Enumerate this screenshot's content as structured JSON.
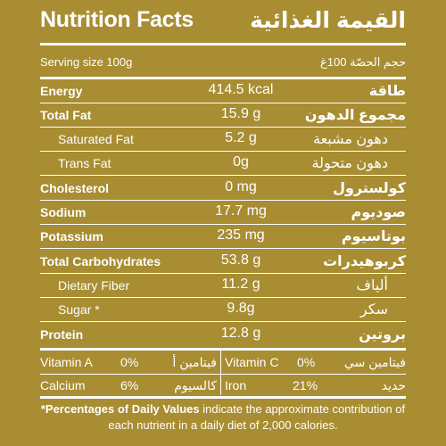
{
  "header": {
    "title_en": "Nutrition Facts",
    "title_ar": "القيمة الغذائية"
  },
  "serving": {
    "label_en": "Serving size 100g",
    "label_ar": "حجم الحصّة 100غ"
  },
  "nutrients": [
    {
      "name_en": "Energy",
      "value": "414.5 kcal",
      "name_ar": "طاقة"
    },
    {
      "name_en": "Total Fat",
      "value": "15.9 g",
      "name_ar": "مجموع الدهون"
    },
    {
      "name_en": "Saturated Fat",
      "value": "5.2 g",
      "name_ar": "دهون مشبعة"
    },
    {
      "name_en": "Trans Fat",
      "value": "0g",
      "name_ar": "دهون متحولة"
    },
    {
      "name_en": "Cholesterol",
      "value": "0 mg",
      "name_ar": "كولسترول"
    },
    {
      "name_en": "Sodium",
      "value": "17.7 mg",
      "name_ar": "صوديوم"
    },
    {
      "name_en": "Potassium",
      "value": "235 mg",
      "name_ar": "بوتاسيوم"
    },
    {
      "name_en": "Total Carbohydrates",
      "value": "53.8 g",
      "name_ar": "كربوهيدرات"
    },
    {
      "name_en": "Dietary Fiber",
      "value": "11.2 g",
      "name_ar": "ألياف"
    },
    {
      "name_en": "Sugar *",
      "value": "9.8g",
      "name_ar": "سكر"
    },
    {
      "name_en": "Protein",
      "value": "12.8 g",
      "name_ar": "بروتين"
    }
  ],
  "vitamins": [
    {
      "name_en": "Vitamin A",
      "percent": "0%",
      "name_ar": "فيتامين أ"
    },
    {
      "name_en": "Vitamin C",
      "percent": "0%",
      "name_ar": "فيتامين سي"
    },
    {
      "name_en": "Calcium",
      "percent": "6%",
      "name_ar": "كالسيوم"
    },
    {
      "name_en": "Iron",
      "percent": "21%",
      "name_ar": "حديد"
    }
  ],
  "footnote": {
    "bold": "*Percentages of Daily Values",
    "text": " indicate the approximate contribution of each nutrient in a daily diet of 2,000 calories."
  }
}
